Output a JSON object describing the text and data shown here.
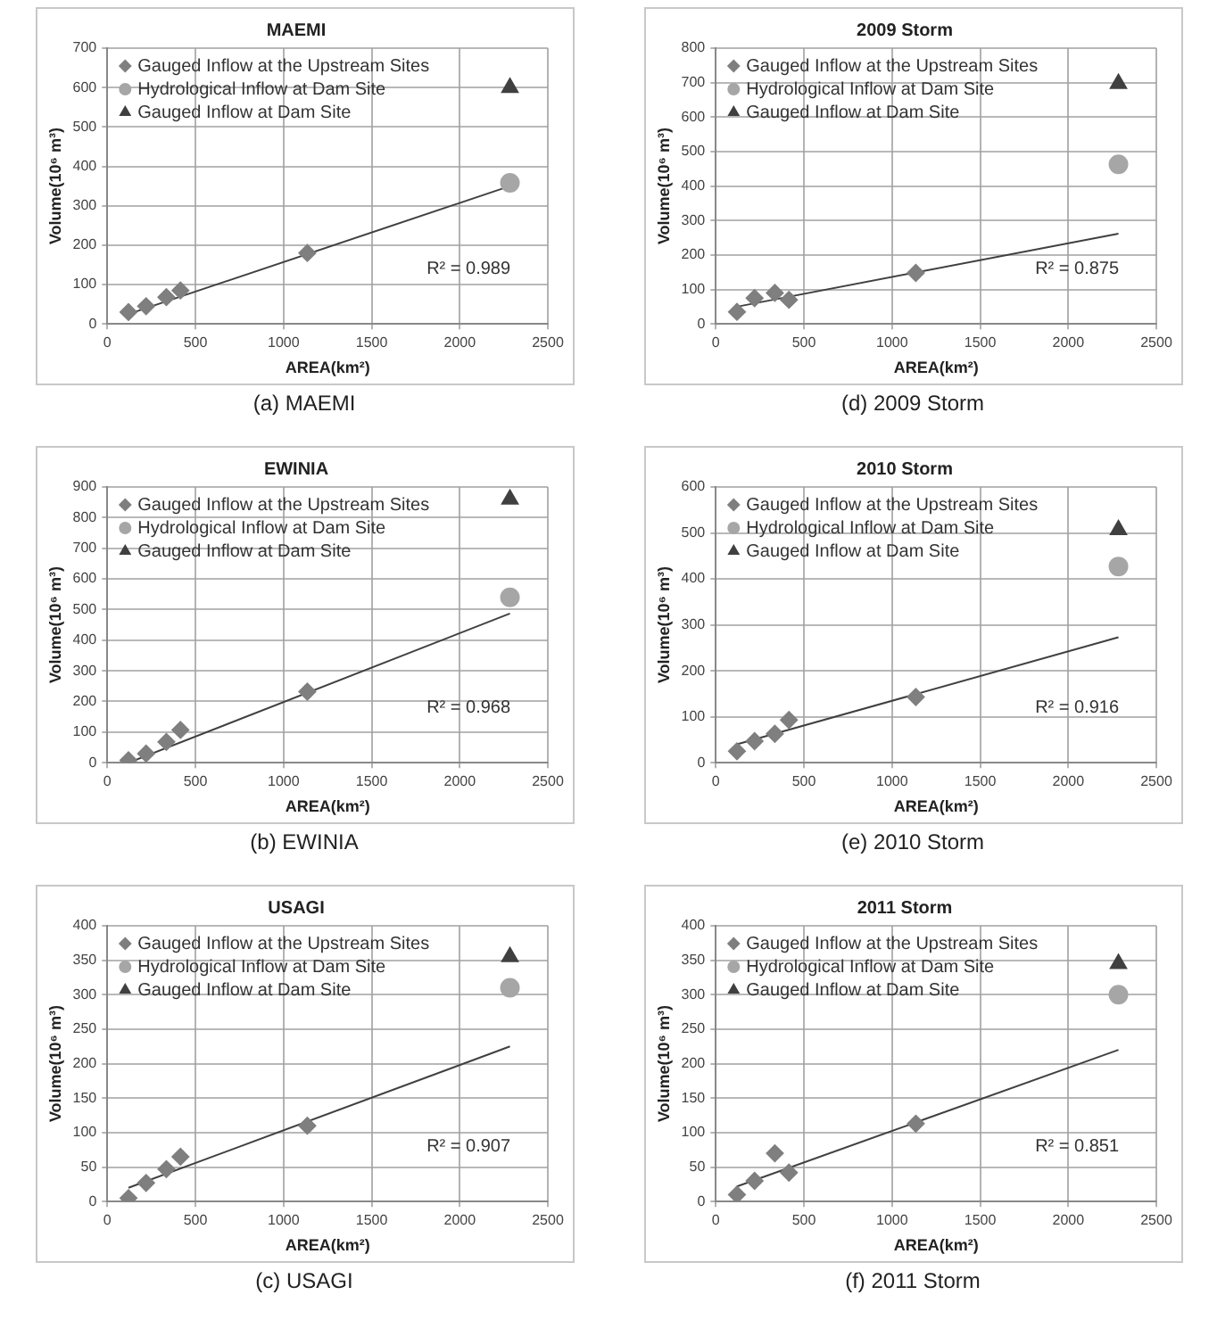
{
  "chart_data": [
    {
      "type": "scatter",
      "title": "MAEMI",
      "xlabel": "AREA(km²)",
      "ylabel": "Volume(10⁶ m³)",
      "xlim": [
        0,
        2500
      ],
      "xticks": [
        0,
        500,
        1000,
        1500,
        2000,
        2500
      ],
      "ylim": [
        0,
        700
      ],
      "yticks": [
        0,
        100,
        200,
        300,
        400,
        500,
        600,
        700
      ],
      "grid": true,
      "legend": "top left",
      "x": [
        120,
        220,
        335,
        415,
        1135,
        2285
      ],
      "series": [
        {
          "name": "Gauged Inflow at the Upstream Sites",
          "color": "#7f7f7f",
          "marker": "diamond",
          "values": [
            30,
            45,
            68,
            85,
            180,
            null
          ]
        },
        {
          "name": "Hydrological Inflow at Dam Site",
          "color": "#a6a6a6",
          "marker": "circle",
          "values": [
            null,
            null,
            null,
            null,
            null,
            358
          ]
        },
        {
          "name": "Gauged Inflow at Dam Site",
          "color": "#404040",
          "marker": "triangle",
          "values": [
            null,
            null,
            null,
            null,
            null,
            600
          ]
        },
        {
          "type": "line",
          "color": "#404040",
          "marker": "none",
          "values": [
            25,
            null,
            null,
            null,
            null,
            350
          ]
        }
      ],
      "annotations": [
        "R² = 0.989",
        "(a) MAEMI"
      ]
    },
    {
      "type": "scatter",
      "title": "2009 Storm",
      "xlabel": "AREA(km²)",
      "ylabel": "Volume(10⁶ m³)",
      "xlim": [
        0,
        2500
      ],
      "xticks": [
        0,
        500,
        1000,
        1500,
        2000,
        2500
      ],
      "ylim": [
        0,
        800
      ],
      "yticks": [
        0,
        100,
        200,
        300,
        400,
        500,
        600,
        700,
        800
      ],
      "grid": true,
      "legend": "top left",
      "x": [
        120,
        220,
        335,
        415,
        1135,
        2285
      ],
      "series": [
        {
          "name": "Gauged Inflow at the Upstream Sites",
          "color": "#7f7f7f",
          "marker": "diamond",
          "values": [
            35,
            75,
            90,
            70,
            148,
            null
          ]
        },
        {
          "name": "Hydrological Inflow at Dam Site",
          "color": "#a6a6a6",
          "marker": "circle",
          "values": [
            null,
            null,
            null,
            null,
            null,
            463
          ]
        },
        {
          "name": "Gauged Inflow at Dam Site",
          "color": "#404040",
          "marker": "triangle",
          "values": [
            null,
            null,
            null,
            null,
            null,
            697
          ]
        },
        {
          "type": "line",
          "color": "#404040",
          "marker": "none",
          "values": [
            50,
            null,
            null,
            null,
            null,
            262
          ]
        }
      ],
      "annotations": [
        "R² = 0.875",
        "(d) 2009 Storm"
      ]
    },
    {
      "type": "scatter",
      "title": "EWINIA",
      "xlabel": "AREA(km²)",
      "ylabel": "Volume(10⁶ m³)",
      "xlim": [
        0,
        2500
      ],
      "xticks": [
        0,
        500,
        1000,
        1500,
        2000,
        2500
      ],
      "ylim": [
        0,
        900
      ],
      "yticks": [
        0,
        100,
        200,
        300,
        400,
        500,
        600,
        700,
        800,
        900
      ],
      "grid": true,
      "legend": "top left",
      "x": [
        120,
        220,
        335,
        415,
        1135,
        2285
      ],
      "series": [
        {
          "name": "Gauged Inflow at the Upstream Sites",
          "color": "#7f7f7f",
          "marker": "diamond",
          "values": [
            8,
            30,
            68,
            107,
            232,
            null
          ]
        },
        {
          "name": "Hydrological Inflow at Dam Site",
          "color": "#a6a6a6",
          "marker": "circle",
          "values": [
            null,
            null,
            null,
            null,
            null,
            540
          ]
        },
        {
          "name": "Gauged Inflow at Dam Site",
          "color": "#404040",
          "marker": "triangle",
          "values": [
            null,
            null,
            null,
            null,
            null,
            860
          ]
        },
        {
          "type": "line",
          "color": "#404040",
          "marker": "none",
          "values": [
            0,
            null,
            null,
            null,
            null,
            487
          ]
        }
      ],
      "annotations": [
        "R² = 0.968",
        "(b) EWINIA"
      ]
    },
    {
      "type": "scatter",
      "title": "2010 Storm",
      "xlabel": "AREA(km²)",
      "ylabel": "Volume(10⁶ m³)",
      "xlim": [
        0,
        2500
      ],
      "xticks": [
        0,
        500,
        1000,
        1500,
        2000,
        2500
      ],
      "ylim": [
        0,
        600
      ],
      "yticks": [
        0,
        100,
        200,
        300,
        400,
        500,
        600
      ],
      "grid": true,
      "legend": "top left",
      "x": [
        120,
        220,
        335,
        415,
        1135,
        2285
      ],
      "series": [
        {
          "name": "Gauged Inflow at the Upstream Sites",
          "color": "#7f7f7f",
          "marker": "diamond",
          "values": [
            25,
            47,
            63,
            93,
            143,
            null
          ]
        },
        {
          "name": "Hydrological Inflow at Dam Site",
          "color": "#a6a6a6",
          "marker": "circle",
          "values": [
            null,
            null,
            null,
            null,
            null,
            427
          ]
        },
        {
          "name": "Gauged Inflow at Dam Site",
          "color": "#404040",
          "marker": "triangle",
          "values": [
            null,
            null,
            null,
            null,
            null,
            507
          ]
        },
        {
          "type": "line",
          "color": "#404040",
          "marker": "none",
          "values": [
            40,
            null,
            null,
            null,
            null,
            273
          ]
        }
      ],
      "annotations": [
        "R² = 0.916",
        "(e) 2010 Storm"
      ]
    },
    {
      "type": "scatter",
      "title": "USAGI",
      "xlabel": "AREA(km²)",
      "ylabel": "Volume(10⁶ m³)",
      "xlim": [
        0,
        2500
      ],
      "xticks": [
        0,
        500,
        1000,
        1500,
        2000,
        2500
      ],
      "ylim": [
        0,
        400
      ],
      "yticks": [
        0,
        50,
        100,
        150,
        200,
        250,
        300,
        350,
        400
      ],
      "grid": true,
      "legend": "top left",
      "x": [
        120,
        220,
        335,
        415,
        1135,
        2285
      ],
      "series": [
        {
          "name": "Gauged Inflow at the Upstream Sites",
          "color": "#7f7f7f",
          "marker": "diamond",
          "values": [
            5,
            27,
            47,
            65,
            110,
            null
          ]
        },
        {
          "name": "Hydrological Inflow at Dam Site",
          "color": "#a6a6a6",
          "marker": "circle",
          "values": [
            null,
            null,
            null,
            null,
            null,
            310
          ]
        },
        {
          "name": "Gauged Inflow at Dam Site",
          "color": "#404040",
          "marker": "triangle",
          "values": [
            null,
            null,
            null,
            null,
            null,
            355
          ]
        },
        {
          "type": "line",
          "color": "#404040",
          "marker": "none",
          "values": [
            20,
            null,
            null,
            null,
            null,
            225
          ]
        }
      ],
      "annotations": [
        "R² = 0.907",
        "(c) USAGI"
      ]
    },
    {
      "type": "scatter",
      "title": "2011 Storm",
      "xlabel": "AREA(km²)",
      "ylabel": "Volume(10⁶ m³)",
      "xlim": [
        0,
        2500
      ],
      "xticks": [
        0,
        500,
        1000,
        1500,
        2000,
        2500
      ],
      "ylim": [
        0,
        400
      ],
      "yticks": [
        0,
        50,
        100,
        150,
        200,
        250,
        300,
        350,
        400
      ],
      "grid": true,
      "legend": "top left",
      "x": [
        120,
        220,
        335,
        415,
        1135,
        2285
      ],
      "series": [
        {
          "name": "Gauged Inflow at the Upstream Sites",
          "color": "#7f7f7f",
          "marker": "diamond",
          "values": [
            10,
            30,
            70,
            42,
            113,
            null
          ]
        },
        {
          "name": "Hydrological Inflow at Dam Site",
          "color": "#a6a6a6",
          "marker": "circle",
          "values": [
            null,
            null,
            null,
            null,
            null,
            300
          ]
        },
        {
          "name": "Gauged Inflow at Dam Site",
          "color": "#404040",
          "marker": "triangle",
          "values": [
            null,
            null,
            null,
            null,
            null,
            345
          ]
        },
        {
          "type": "line",
          "color": "#404040",
          "marker": "none",
          "values": [
            22,
            null,
            null,
            null,
            null,
            220
          ]
        }
      ],
      "annotations": [
        "R² = 0.851",
        "(f) 2011 Storm"
      ]
    }
  ]
}
